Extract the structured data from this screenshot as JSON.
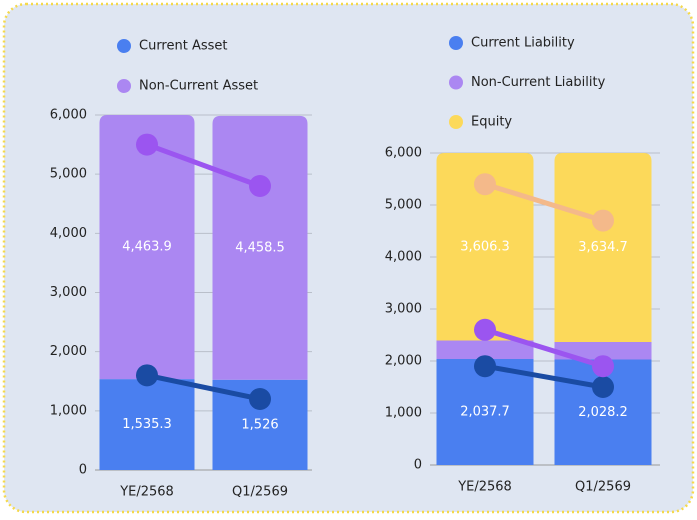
{
  "chart_data": [
    {
      "type": "bar",
      "categories": [
        "YE/2568",
        "Q1/2569"
      ],
      "series": [
        {
          "name": "Current Asset",
          "color": "#4a7ff0",
          "values": [
            1535.3,
            1526
          ],
          "value_labels": [
            "1,535.3",
            "1,526"
          ]
        },
        {
          "name": "Non-Current Asset",
          "color": "#ab87f2",
          "values": [
            4463.9,
            4458.5
          ],
          "value_labels": [
            "4,463.9",
            "4,458.5"
          ]
        }
      ],
      "lines": [
        {
          "color": "#1a4ba3",
          "values": [
            1600,
            1200
          ]
        },
        {
          "color": "#9b55f0",
          "values": [
            5500,
            4800
          ]
        }
      ],
      "ylim": [
        0,
        6000
      ],
      "yticks": [
        {
          "value": 0,
          "label": "0"
        },
        {
          "value": 1000,
          "label": "1,000"
        },
        {
          "value": 2000,
          "label": "2,000"
        },
        {
          "value": 3000,
          "label": "3,000"
        },
        {
          "value": 4000,
          "label": "4,000"
        },
        {
          "value": 5000,
          "label": "5,000"
        },
        {
          "value": 6000,
          "label": "6,000"
        }
      ],
      "grid": true
    },
    {
      "type": "bar",
      "categories": [
        "YE/2568",
        "Q1/2569"
      ],
      "series": [
        {
          "name": "Current Liability",
          "color": "#4a7ff0",
          "values": [
            2037.7,
            2028.2
          ],
          "value_labels": [
            "2,037.7",
            "2,028.2"
          ]
        },
        {
          "name": "Non-Current Liability",
          "color": "#ab87f2",
          "values": [
            356,
            337
          ]
        },
        {
          "name": "Equity",
          "color": "#fcd95a",
          "values": [
            3606.3,
            3634.7
          ],
          "value_labels": [
            "3,606.3",
            "3,634.7"
          ]
        }
      ],
      "lines": [
        {
          "color": "#1a4ba3",
          "values": [
            1900,
            1500
          ]
        },
        {
          "color": "#9b55f0",
          "values": [
            2600,
            1900
          ]
        },
        {
          "color": "#f4b98a",
          "values": [
            5400,
            4700
          ]
        }
      ],
      "ylim": [
        0,
        6000
      ],
      "yticks": [
        {
          "value": 0,
          "label": "0"
        },
        {
          "value": 1000,
          "label": "1,000"
        },
        {
          "value": 2000,
          "label": "2,000"
        },
        {
          "value": 3000,
          "label": "3,000"
        },
        {
          "value": 4000,
          "label": "4,000"
        },
        {
          "value": 5000,
          "label": "5,000"
        },
        {
          "value": 6000,
          "label": "6,000"
        }
      ],
      "grid": true
    }
  ]
}
